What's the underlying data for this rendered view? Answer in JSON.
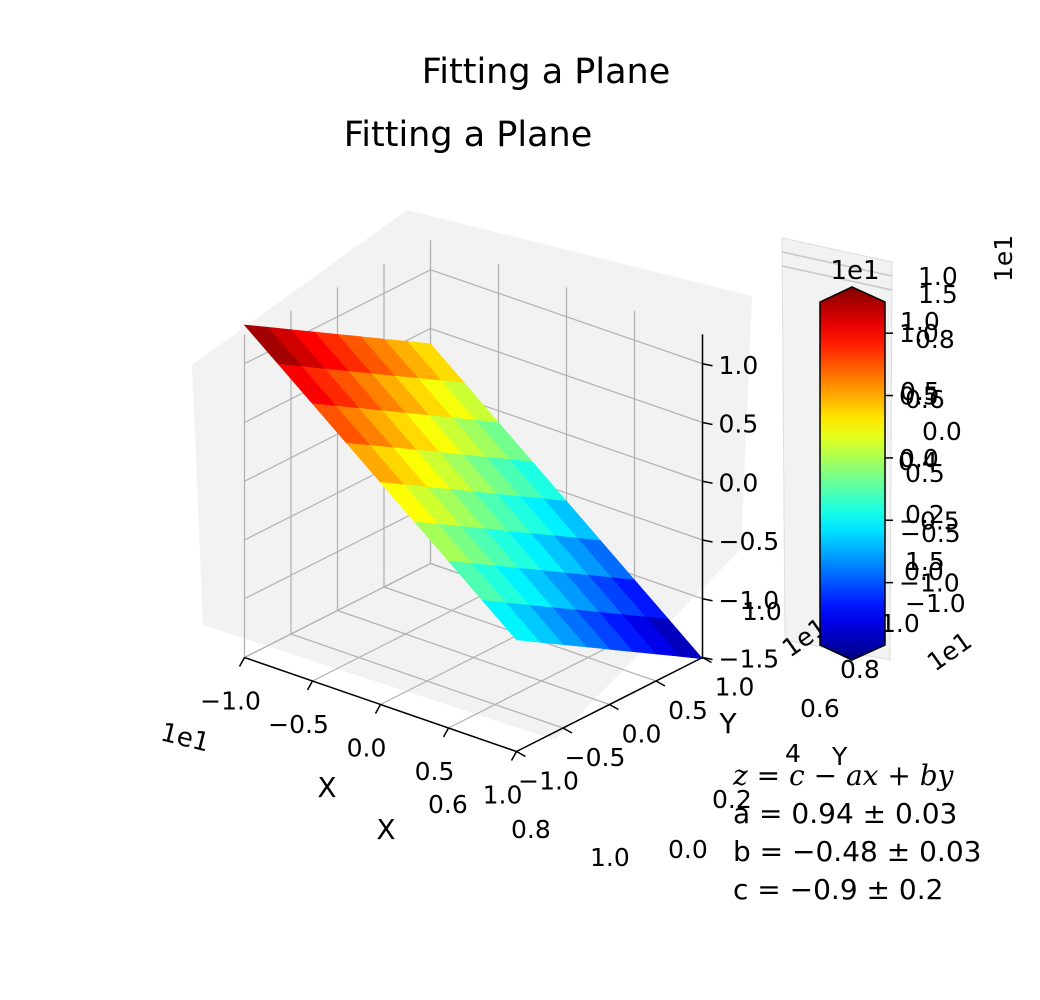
{
  "figure_title": "Fitting a Plane",
  "axes_title": "Fitting a Plane",
  "chart_data": {
    "type": "surface3d",
    "title": "Fitting a Plane",
    "xlabel": "X",
    "ylabel": "Y",
    "xlim": [
      -10,
      10
    ],
    "ylim": [
      -10,
      10
    ],
    "zlim": [
      -15,
      12.5
    ],
    "x_ticks": [
      "−1.0",
      "−0.5",
      "0.0",
      "0.5",
      "1.0"
    ],
    "y_ticks": [
      "−1.0",
      "−0.5",
      "0.0",
      "0.5",
      "1.0"
    ],
    "z_ticks": [
      "1.0",
      "0.5",
      "0.0",
      "−0.5",
      "−1.0",
      "−1.5"
    ],
    "axis_offset_label": "1e1",
    "x_grid": [
      -10,
      -7.5,
      -5,
      -2.5,
      0,
      2.5,
      5,
      7.5,
      10
    ],
    "y_grid": [
      -10,
      -7.5,
      -5,
      -2.5,
      0,
      2.5,
      5,
      7.5,
      10
    ],
    "model": {
      "c": -0.9,
      "a": 0.94,
      "b": -0.48,
      "form": "z = c - a*x + b*y"
    },
    "colormap": "jet",
    "colorbar": {
      "label_top": "1e1",
      "range": [
        -15,
        12.5
      ],
      "ticks": [
        {
          "value": 10,
          "label": "1.0"
        },
        {
          "value": 5,
          "label": "0.5"
        },
        {
          "value": 0,
          "label": "0.0"
        },
        {
          "value": -5,
          "label": "−0.5"
        },
        {
          "value": -10,
          "label": "−1.0"
        }
      ],
      "extend": "both"
    },
    "ghost_labels": [
      "1.0",
      "1.5",
      "1.0",
      "0.8",
      "0.5",
      "0.6",
      "0.0",
      "0.4",
      "0.5",
      "0.2",
      "−0.5",
      "1.5",
      "0.0",
      "−1.0",
      "1.0",
      "0.8",
      "0.6",
      "4",
      "Y",
      "0.2",
      "0.0",
      "1e1",
      "1e1",
      "1.0",
      "0.6",
      "0.8",
      "X",
      "1e1",
      "1.0"
    ],
    "grid": true
  },
  "fit_text": {
    "line1": "z = c − ax + by",
    "line2": "a = 0.94 ± 0.03",
    "line3": "b = −0.48 ± 0.03",
    "line4": "c = −0.9 ± 0.2"
  },
  "colors": {
    "pane": "#f2f2f2",
    "grid": "#b0b0b0",
    "edge": "#ffffff"
  }
}
